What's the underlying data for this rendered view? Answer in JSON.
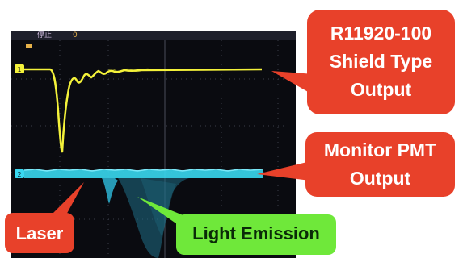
{
  "scope": {
    "status_text": "停止",
    "trigger_value": "0",
    "channel_1_marker": "1",
    "channel_2_marker": "2",
    "trace_1_color": "#f4f23a",
    "trace_2_color": "#39d8f0"
  },
  "callouts": {
    "shield_output": {
      "lines": [
        "R11920-100",
        "Shield Type",
        "Output"
      ],
      "color": "#e8412a"
    },
    "monitor_output": {
      "lines": [
        "Monitor PMT",
        "Output"
      ],
      "color": "#e8412a"
    },
    "laser": {
      "text": "Laser",
      "color": "#e8412a"
    },
    "light_emission": {
      "text": "Light Emission",
      "color": "#6fe83a"
    }
  }
}
